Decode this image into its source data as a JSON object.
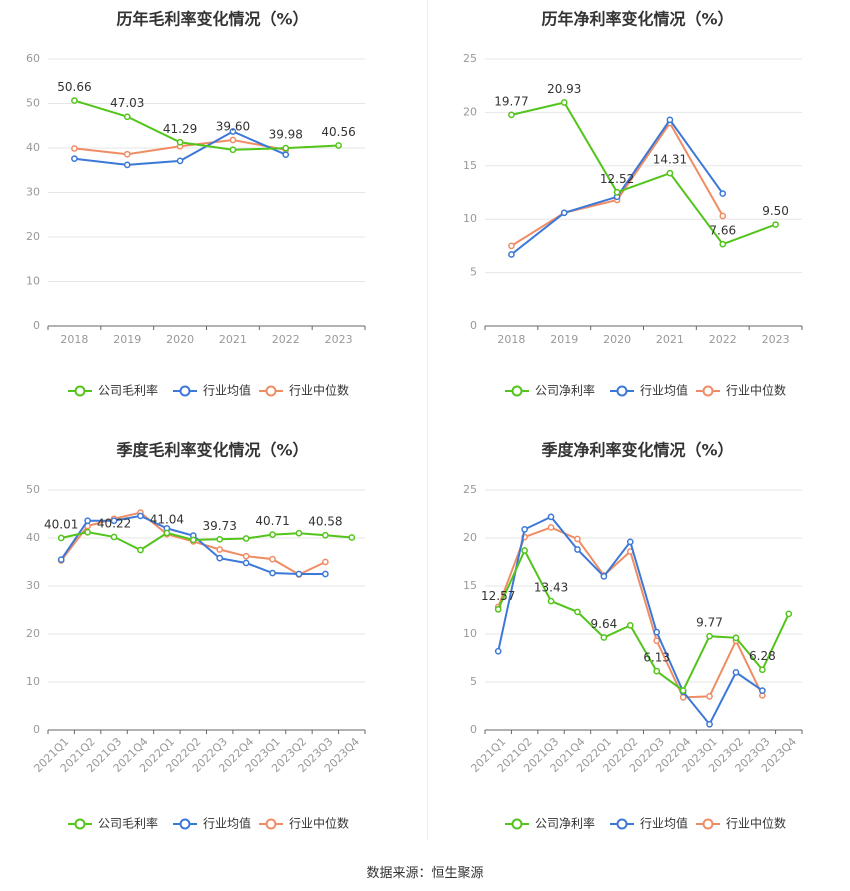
{
  "footer": {
    "source": "数据来源：恒生聚源"
  },
  "colors": {
    "company": "#52c41a",
    "industry_avg": "#3c78d8",
    "industry_median": "#f08c64",
    "grid": "#e6e6e6",
    "axis_text": "#999999",
    "label": "#333333"
  },
  "chart_data": [
    {
      "type": "line",
      "title": "历年毛利率变化情况（%）",
      "categories": [
        "2018",
        "2019",
        "2020",
        "2021",
        "2022",
        "2023"
      ],
      "ylim": [
        0,
        60
      ],
      "yticks": [
        0,
        10,
        20,
        30,
        40,
        50,
        60
      ],
      "grid": true,
      "legend_position": "bottom",
      "rotate_labels": false,
      "series": [
        {
          "name": "公司毛利率",
          "color": "#52c41a",
          "values": [
            50.66,
            47.03,
            41.29,
            39.6,
            39.98,
            40.56
          ],
          "labels": [
            "50.66",
            "47.03",
            "41.29",
            "",
            "39.98",
            "40.56"
          ]
        },
        {
          "name": "行业均值",
          "color": "#3c78d8",
          "values": [
            37.6,
            36.2,
            37.1,
            43.7,
            38.5,
            null
          ]
        },
        {
          "name": "行业中位数",
          "color": "#f08c64",
          "values": [
            39.9,
            38.6,
            40.4,
            41.8,
            39.6,
            null
          ],
          "labels": [
            "",
            "",
            "",
            "39.60",
            "",
            ""
          ]
        }
      ]
    },
    {
      "type": "line",
      "title": "历年净利率变化情况（%）",
      "categories": [
        "2018",
        "2019",
        "2020",
        "2021",
        "2022",
        "2023"
      ],
      "ylim": [
        0,
        25
      ],
      "yticks": [
        0,
        5,
        10,
        15,
        20,
        25
      ],
      "grid": true,
      "legend_position": "bottom",
      "rotate_labels": false,
      "series": [
        {
          "name": "公司净利率",
          "color": "#52c41a",
          "values": [
            19.77,
            20.93,
            12.52,
            14.31,
            7.66,
            9.5
          ],
          "labels": [
            "19.77",
            "20.93",
            "12.52",
            "14.31",
            "7.66",
            "9.50"
          ]
        },
        {
          "name": "行业均值",
          "color": "#3c78d8",
          "values": [
            6.7,
            10.6,
            12.1,
            19.3,
            12.4,
            null
          ]
        },
        {
          "name": "行业中位数",
          "color": "#f08c64",
          "values": [
            7.5,
            10.6,
            11.8,
            19.0,
            10.3,
            null
          ]
        }
      ]
    },
    {
      "type": "line",
      "title": "季度毛利率变化情况（%）",
      "categories": [
        "2021Q1",
        "2021Q2",
        "2021Q3",
        "2021Q4",
        "2022Q1",
        "2022Q2",
        "2022Q3",
        "2022Q4",
        "2023Q1",
        "2023Q2",
        "2023Q3",
        "2023Q4"
      ],
      "ylim": [
        0,
        50
      ],
      "yticks": [
        0,
        10,
        20,
        30,
        40,
        50
      ],
      "grid": true,
      "legend_position": "bottom",
      "rotate_labels": true,
      "series": [
        {
          "name": "公司毛利率",
          "color": "#52c41a",
          "values": [
            40.01,
            41.2,
            40.22,
            37.5,
            41.04,
            39.6,
            39.73,
            39.9,
            40.71,
            41.0,
            40.58,
            40.1
          ],
          "labels": [
            "40.01",
            "",
            "40.22",
            "",
            "41.04",
            "",
            "39.73",
            "",
            "40.71",
            "",
            "40.58",
            ""
          ]
        },
        {
          "name": "行业均值",
          "color": "#3c78d8",
          "values": [
            35.5,
            43.6,
            43.6,
            44.6,
            42.0,
            40.5,
            35.8,
            34.8,
            32.7,
            32.5,
            32.5,
            null
          ]
        },
        {
          "name": "行业中位数",
          "color": "#f08c64",
          "values": [
            35.3,
            42.5,
            44.0,
            45.3,
            40.8,
            39.3,
            37.6,
            36.2,
            35.6,
            32.4,
            35.0,
            null
          ]
        }
      ]
    },
    {
      "type": "line",
      "title": "季度净利率变化情况（%）",
      "categories": [
        "2021Q1",
        "2021Q2",
        "2021Q3",
        "2021Q4",
        "2022Q1",
        "2022Q2",
        "2022Q3",
        "2022Q4",
        "2023Q1",
        "2023Q2",
        "2023Q3",
        "2023Q4"
      ],
      "ylim": [
        0,
        25
      ],
      "yticks": [
        0,
        5,
        10,
        15,
        20,
        25
      ],
      "grid": true,
      "legend_position": "bottom",
      "rotate_labels": true,
      "series": [
        {
          "name": "公司净利率",
          "color": "#52c41a",
          "values": [
            12.57,
            18.7,
            13.43,
            12.3,
            9.64,
            10.9,
            6.13,
            4.1,
            9.77,
            9.6,
            6.28,
            12.1
          ],
          "labels": [
            "12.57",
            "",
            "13.43",
            "",
            "9.64",
            "",
            "6.13",
            "",
            "9.77",
            "",
            "6.28",
            ""
          ]
        },
        {
          "name": "行业均值",
          "color": "#3c78d8",
          "values": [
            8.2,
            20.9,
            22.2,
            18.8,
            16.0,
            19.6,
            10.2,
            4.0,
            0.6,
            6.0,
            4.1,
            null
          ]
        },
        {
          "name": "行业中位数",
          "color": "#f08c64",
          "values": [
            12.8,
            20.1,
            21.1,
            19.9,
            16.1,
            18.6,
            9.3,
            3.4,
            3.5,
            9.3,
            3.6,
            null
          ]
        }
      ]
    }
  ]
}
